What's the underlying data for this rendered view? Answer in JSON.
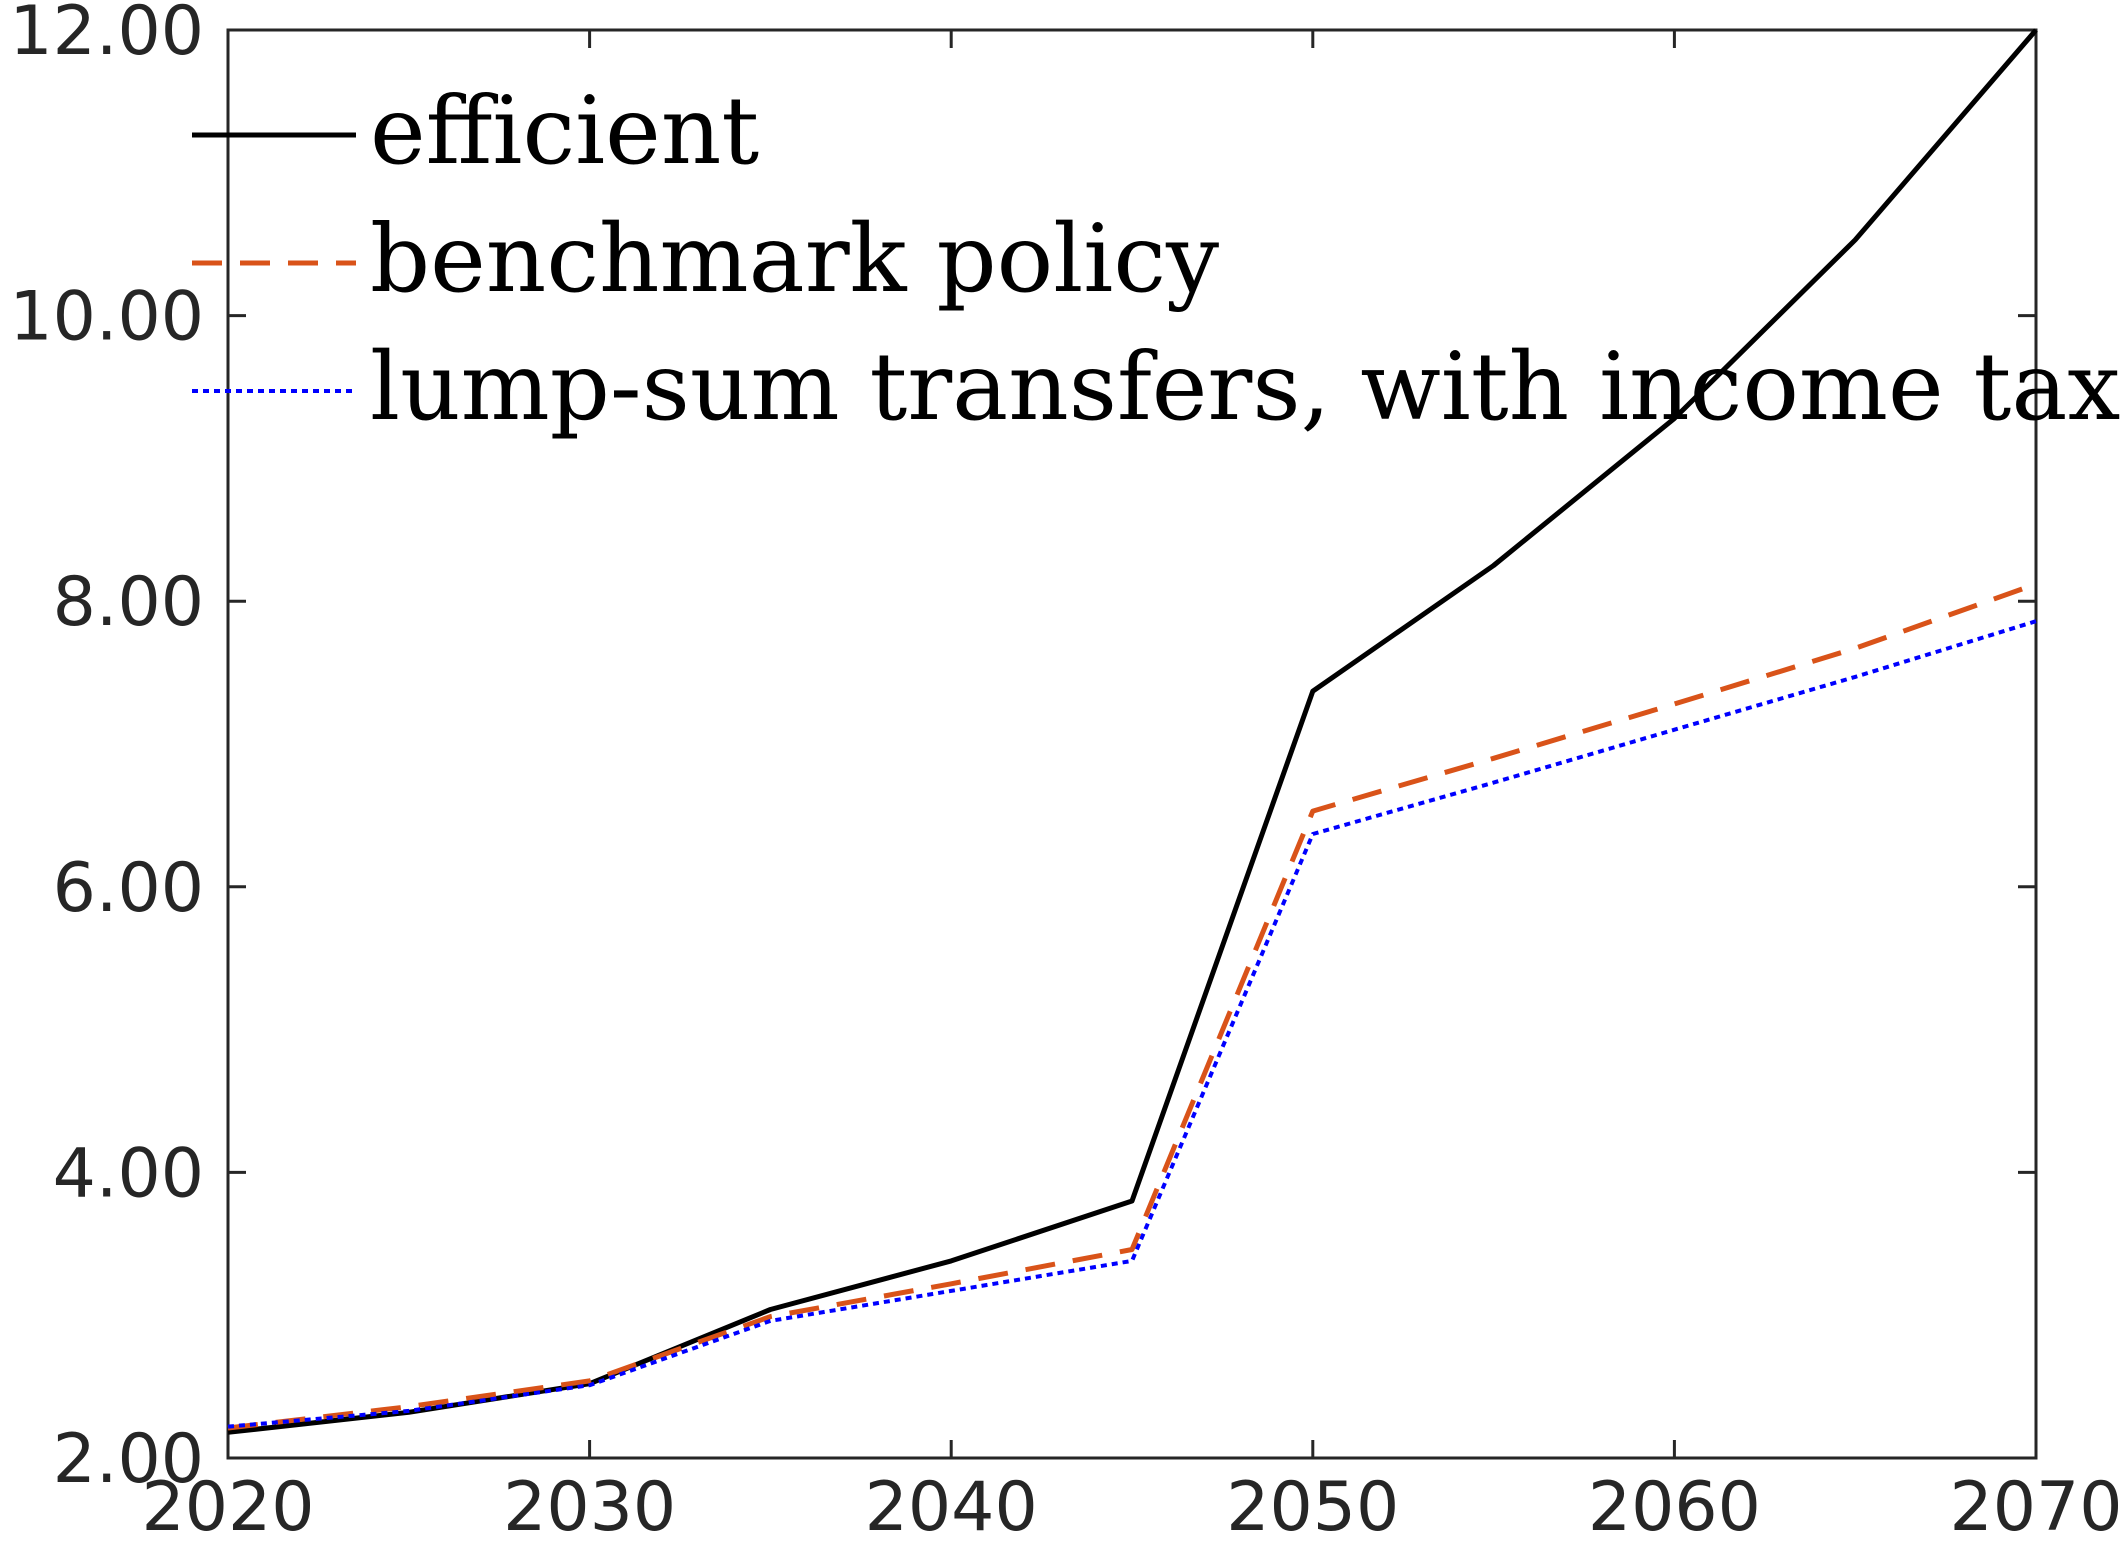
{
  "chart_data": {
    "type": "line",
    "title": "",
    "xlabel": "",
    "ylabel": "",
    "xlim": [
      2020,
      2070
    ],
    "ylim": [
      2,
      12
    ],
    "xticks": [
      2020,
      2030,
      2040,
      2050,
      2060,
      2070
    ],
    "yticks": [
      2,
      4,
      6,
      8,
      10,
      12
    ],
    "xtick_labels": [
      "2020",
      "2030",
      "2040",
      "2050",
      "2060",
      "2070"
    ],
    "ytick_labels": [
      "2.00",
      "4.00",
      "6.00",
      "8.00",
      "10.00",
      "12.00"
    ],
    "grid": false,
    "legend_position": "top-left",
    "x": [
      2020,
      2025,
      2030,
      2035,
      2040,
      2045,
      2050,
      2055,
      2060,
      2065,
      2070
    ],
    "series": [
      {
        "name": "efficient",
        "color": "#000000",
        "style": "solid",
        "values": [
          2.18,
          2.32,
          2.52,
          3.04,
          3.38,
          3.8,
          7.37,
          8.25,
          9.28,
          10.53,
          12.0
        ]
      },
      {
        "name": "benchmark policy",
        "color": "#D95319",
        "style": "dashed",
        "values": [
          2.21,
          2.36,
          2.54,
          2.99,
          3.22,
          3.46,
          6.53,
          6.9,
          7.28,
          7.67,
          8.12
        ]
      },
      {
        "name": "lump-sum transfers, with income tax",
        "color": "#0000FF",
        "style": "dotted",
        "values": [
          2.22,
          2.33,
          2.51,
          2.96,
          3.17,
          3.38,
          6.37,
          6.73,
          7.1,
          7.47,
          7.86
        ]
      }
    ]
  }
}
